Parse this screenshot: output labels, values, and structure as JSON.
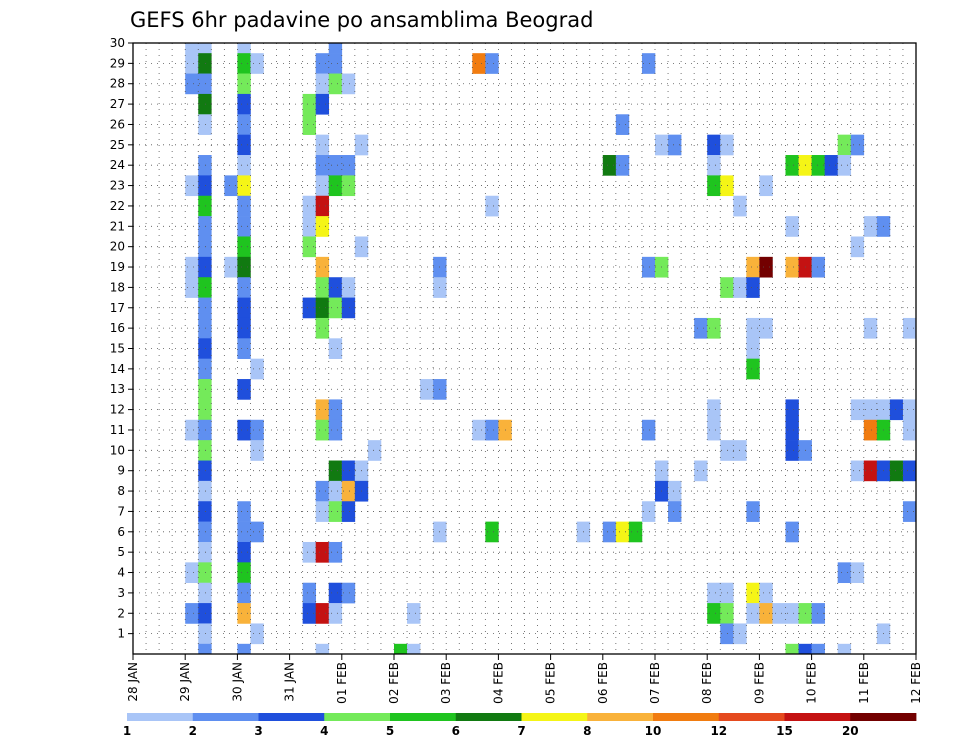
{
  "chart_data": {
    "type": "heatmap",
    "title": "GEFS 6hr padavine po ansamblima Beograd",
    "y_ticks": [
      "1",
      "2",
      "3",
      "4",
      "5",
      "6",
      "7",
      "8",
      "9",
      "10",
      "11",
      "12",
      "13",
      "14",
      "15",
      "16",
      "17",
      "18",
      "19",
      "20",
      "21",
      "22",
      "23",
      "24",
      "25",
      "26",
      "27",
      "28",
      "29",
      "30"
    ],
    "x_ticks": [
      "28 JAN",
      "29 JAN",
      "30 JAN",
      "31 JAN",
      "01 FEB",
      "02 FEB",
      "03 FEB",
      "04 FEB",
      "05 FEB",
      "06 FEB",
      "07 FEB",
      "08 FEB",
      "09 FEB",
      "10 FEB",
      "11 FEB",
      "12 FEB"
    ],
    "color_levels": [
      "1",
      "2",
      "3",
      "4",
      "5",
      "6",
      "7",
      "8",
      "10",
      "12",
      "15",
      "20"
    ],
    "color_scale": [
      "#a9c5f7",
      "#5f8ff0",
      "#1f4fdc",
      "#74ea5a",
      "#1fc41f",
      "#117a11",
      "#f5f516",
      "#f9b23a",
      "#f17c10",
      "#e54a1e",
      "#c41212",
      "#730000"
    ],
    "ylim": [
      0,
      30
    ],
    "xlim": [
      "28 JAN 00",
      "12 FEB 00"
    ],
    "grid": true,
    "note": "cells: [time step (6h steps since 28 JAN 00), member, color index 0-11]",
    "cells": [
      [
        4,
        30,
        0
      ],
      [
        4,
        29,
        0
      ],
      [
        4,
        28,
        1
      ],
      [
        4,
        23,
        0
      ],
      [
        4,
        19,
        0
      ],
      [
        4,
        18,
        0
      ],
      [
        4,
        11,
        0
      ],
      [
        4,
        4,
        0
      ],
      [
        4,
        2,
        1
      ],
      [
        5,
        30,
        0
      ],
      [
        5,
        29,
        5
      ],
      [
        5,
        28,
        1
      ],
      [
        5,
        27,
        5
      ],
      [
        5,
        26,
        0
      ],
      [
        5,
        24,
        1
      ],
      [
        5,
        23,
        2
      ],
      [
        5,
        22,
        4
      ],
      [
        5,
        21,
        1
      ],
      [
        5,
        20,
        1
      ],
      [
        5,
        19,
        2
      ],
      [
        5,
        18,
        4
      ],
      [
        5,
        17,
        1
      ],
      [
        5,
        16,
        1
      ],
      [
        5,
        15,
        2
      ],
      [
        5,
        14,
        1
      ],
      [
        5,
        13,
        3
      ],
      [
        5,
        12,
        3
      ],
      [
        5,
        11,
        1
      ],
      [
        5,
        10,
        3
      ],
      [
        5,
        9,
        2
      ],
      [
        5,
        8,
        0
      ],
      [
        5,
        7,
        2
      ],
      [
        5,
        6,
        1
      ],
      [
        5,
        5,
        0
      ],
      [
        5,
        4,
        3
      ],
      [
        5,
        3,
        0
      ],
      [
        5,
        2,
        2
      ],
      [
        5,
        1,
        0
      ],
      [
        5,
        0,
        1
      ],
      [
        7,
        23,
        1
      ],
      [
        7,
        19,
        0
      ],
      [
        8,
        30,
        0
      ],
      [
        8,
        29,
        4
      ],
      [
        8,
        28,
        3
      ],
      [
        8,
        27,
        2
      ],
      [
        8,
        26,
        1
      ],
      [
        8,
        25,
        2
      ],
      [
        8,
        24,
        0
      ],
      [
        8,
        23,
        6
      ],
      [
        8,
        22,
        1
      ],
      [
        8,
        21,
        1
      ],
      [
        8,
        20,
        4
      ],
      [
        8,
        19,
        5
      ],
      [
        8,
        18,
        1
      ],
      [
        8,
        17,
        2
      ],
      [
        8,
        16,
        2
      ],
      [
        8,
        15,
        1
      ],
      [
        8,
        13,
        2
      ],
      [
        8,
        11,
        2
      ],
      [
        8,
        7,
        1
      ],
      [
        8,
        6,
        1
      ],
      [
        8,
        5,
        2
      ],
      [
        8,
        4,
        4
      ],
      [
        8,
        3,
        1
      ],
      [
        8,
        2,
        7
      ],
      [
        8,
        0,
        1
      ],
      [
        9,
        29,
        0
      ],
      [
        9,
        11,
        1
      ],
      [
        9,
        10,
        0
      ],
      [
        9,
        6,
        1
      ],
      [
        9,
        1,
        0
      ],
      [
        9,
        14,
        0
      ],
      [
        13,
        27,
        3
      ],
      [
        13,
        26,
        3
      ],
      [
        13,
        22,
        0
      ],
      [
        13,
        21,
        0
      ],
      [
        13,
        20,
        3
      ],
      [
        13,
        17,
        2
      ],
      [
        13,
        5,
        0
      ],
      [
        13,
        3,
        1
      ],
      [
        13,
        2,
        2
      ],
      [
        14,
        29,
        1
      ],
      [
        14,
        28,
        0
      ],
      [
        14,
        27,
        2
      ],
      [
        14,
        25,
        0
      ],
      [
        14,
        24,
        1
      ],
      [
        14,
        23,
        0
      ],
      [
        14,
        22,
        10
      ],
      [
        14,
        21,
        6
      ],
      [
        14,
        19,
        7
      ],
      [
        14,
        18,
        3
      ],
      [
        14,
        17,
        5
      ],
      [
        14,
        16,
        3
      ],
      [
        14,
        12,
        7
      ],
      [
        14,
        11,
        3
      ],
      [
        14,
        8,
        1
      ],
      [
        14,
        7,
        0
      ],
      [
        14,
        5,
        10
      ],
      [
        14,
        2,
        10
      ],
      [
        14,
        0,
        0
      ],
      [
        15,
        30,
        1
      ],
      [
        15,
        29,
        1
      ],
      [
        15,
        28,
        3
      ],
      [
        15,
        24,
        1
      ],
      [
        15,
        23,
        4
      ],
      [
        15,
        18,
        2
      ],
      [
        15,
        17,
        3
      ],
      [
        15,
        15,
        0
      ],
      [
        15,
        12,
        1
      ],
      [
        15,
        11,
        1
      ],
      [
        15,
        9,
        5
      ],
      [
        15,
        8,
        0
      ],
      [
        15,
        7,
        3
      ],
      [
        15,
        5,
        1
      ],
      [
        15,
        3,
        2
      ],
      [
        15,
        2,
        0
      ],
      [
        16,
        28,
        0
      ],
      [
        16,
        24,
        1
      ],
      [
        16,
        23,
        3
      ],
      [
        16,
        18,
        0
      ],
      [
        16,
        17,
        2
      ],
      [
        16,
        9,
        2
      ],
      [
        16,
        8,
        7
      ],
      [
        16,
        7,
        2
      ],
      [
        16,
        3,
        1
      ],
      [
        17,
        25,
        0
      ],
      [
        17,
        20,
        0
      ],
      [
        17,
        9,
        0
      ],
      [
        17,
        8,
        2
      ],
      [
        18,
        10,
        0
      ],
      [
        20,
        0,
        4
      ],
      [
        21,
        2,
        0
      ],
      [
        21,
        0,
        0
      ],
      [
        22,
        13,
        0
      ],
      [
        23,
        19,
        1
      ],
      [
        23,
        18,
        0
      ],
      [
        23,
        13,
        1
      ],
      [
        23,
        6,
        0
      ],
      [
        26,
        29,
        8
      ],
      [
        26,
        11,
        0
      ],
      [
        27,
        29,
        1
      ],
      [
        27,
        22,
        0
      ],
      [
        27,
        11,
        1
      ],
      [
        27,
        6,
        4
      ],
      [
        28,
        11,
        7
      ],
      [
        34,
        6,
        0
      ],
      [
        36,
        24,
        5
      ],
      [
        36,
        6,
        1
      ],
      [
        37,
        26,
        1
      ],
      [
        37,
        24,
        1
      ],
      [
        37,
        6,
        6
      ],
      [
        38,
        6,
        4
      ],
      [
        39,
        29,
        1
      ],
      [
        39,
        19,
        1
      ],
      [
        39,
        11,
        1
      ],
      [
        39,
        7,
        0
      ],
      [
        40,
        25,
        0
      ],
      [
        40,
        19,
        3
      ],
      [
        40,
        9,
        0
      ],
      [
        40,
        8,
        2
      ],
      [
        41,
        25,
        1
      ],
      [
        41,
        8,
        0
      ],
      [
        41,
        7,
        1
      ],
      [
        43,
        16,
        1
      ],
      [
        43,
        9,
        0
      ],
      [
        44,
        25,
        2
      ],
      [
        44,
        24,
        0
      ],
      [
        44,
        23,
        4
      ],
      [
        44,
        16,
        3
      ],
      [
        44,
        12,
        0
      ],
      [
        44,
        11,
        0
      ],
      [
        44,
        3,
        0
      ],
      [
        44,
        2,
        4
      ],
      [
        45,
        25,
        0
      ],
      [
        45,
        23,
        6
      ],
      [
        45,
        18,
        3
      ],
      [
        45,
        10,
        0
      ],
      [
        45,
        3,
        0
      ],
      [
        45,
        2,
        3
      ],
      [
        45,
        1,
        1
      ],
      [
        46,
        22,
        0
      ],
      [
        46,
        18,
        0
      ],
      [
        46,
        10,
        0
      ],
      [
        46,
        1,
        0
      ],
      [
        47,
        19,
        7
      ],
      [
        47,
        18,
        2
      ],
      [
        47,
        16,
        0
      ],
      [
        47,
        15,
        0
      ],
      [
        47,
        14,
        4
      ],
      [
        47,
        7,
        1
      ],
      [
        47,
        3,
        6
      ],
      [
        47,
        2,
        0
      ],
      [
        48,
        23,
        0
      ],
      [
        48,
        19,
        11
      ],
      [
        48,
        16,
        0
      ],
      [
        48,
        3,
        0
      ],
      [
        48,
        2,
        7
      ],
      [
        49,
        2,
        0
      ],
      [
        50,
        24,
        4
      ],
      [
        50,
        21,
        0
      ],
      [
        50,
        19,
        7
      ],
      [
        50,
        12,
        2
      ],
      [
        50,
        11,
        2
      ],
      [
        50,
        10,
        2
      ],
      [
        50,
        6,
        1
      ],
      [
        50,
        2,
        0
      ],
      [
        50,
        0,
        3
      ],
      [
        51,
        24,
        6
      ],
      [
        51,
        19,
        10
      ],
      [
        51,
        10,
        1
      ],
      [
        51,
        2,
        3
      ],
      [
        51,
        0,
        2
      ],
      [
        52,
        24,
        4
      ],
      [
        52,
        19,
        1
      ],
      [
        52,
        2,
        1
      ],
      [
        52,
        0,
        1
      ],
      [
        53,
        24,
        2
      ],
      [
        54,
        25,
        3
      ],
      [
        54,
        24,
        0
      ],
      [
        54,
        4,
        1
      ],
      [
        54,
        0,
        0
      ],
      [
        55,
        25,
        1
      ],
      [
        55,
        20,
        0
      ],
      [
        55,
        12,
        0
      ],
      [
        55,
        9,
        0
      ],
      [
        55,
        4,
        0
      ],
      [
        56,
        21,
        0
      ],
      [
        56,
        16,
        0
      ],
      [
        56,
        12,
        0
      ],
      [
        56,
        11,
        8
      ],
      [
        56,
        9,
        10
      ],
      [
        57,
        21,
        1
      ],
      [
        57,
        12,
        0
      ],
      [
        57,
        11,
        4
      ],
      [
        57,
        9,
        2
      ],
      [
        57,
        1,
        0
      ],
      [
        58,
        12,
        2
      ],
      [
        58,
        9,
        5
      ],
      [
        59,
        16,
        0
      ],
      [
        59,
        12,
        0
      ],
      [
        59,
        11,
        0
      ],
      [
        59,
        9,
        2
      ],
      [
        59,
        7,
        1
      ]
    ]
  }
}
